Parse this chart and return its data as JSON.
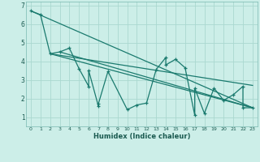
{
  "xlabel": "Humidex (Indice chaleur)",
  "bg_color": "#cceee8",
  "line_color": "#1a7a6e",
  "grid_color": "#aad8d0",
  "xlim": [
    -0.5,
    23.5
  ],
  "ylim": [
    0.5,
    7.2
  ],
  "xticks": [
    0,
    1,
    2,
    3,
    4,
    5,
    6,
    7,
    8,
    9,
    10,
    11,
    12,
    13,
    14,
    15,
    16,
    17,
    18,
    19,
    20,
    21,
    22,
    23
  ],
  "yticks": [
    1,
    2,
    3,
    4,
    5,
    6,
    7
  ],
  "scatter_x": [
    0,
    1,
    2,
    3,
    4,
    5,
    6,
    6,
    7,
    7,
    8,
    10,
    11,
    12,
    13,
    14,
    14,
    15,
    16,
    17,
    17,
    18,
    19,
    20,
    21,
    22,
    22,
    23
  ],
  "scatter_y": [
    6.7,
    6.5,
    4.4,
    4.5,
    4.7,
    3.6,
    2.65,
    3.5,
    1.6,
    1.7,
    3.45,
    1.4,
    1.65,
    1.75,
    3.55,
    4.2,
    3.8,
    4.1,
    3.65,
    1.1,
    2.55,
    1.2,
    2.55,
    1.9,
    2.2,
    2.65,
    1.5,
    1.5
  ],
  "line1_x": [
    0,
    23
  ],
  "line1_y": [
    6.7,
    1.5
  ],
  "line2_x": [
    2,
    23
  ],
  "line2_y": [
    4.4,
    1.5
  ],
  "line3_x": [
    3,
    23
  ],
  "line3_y": [
    4.5,
    1.5
  ],
  "line4_x": [
    2,
    23
  ],
  "line4_y": [
    4.4,
    2.7
  ]
}
